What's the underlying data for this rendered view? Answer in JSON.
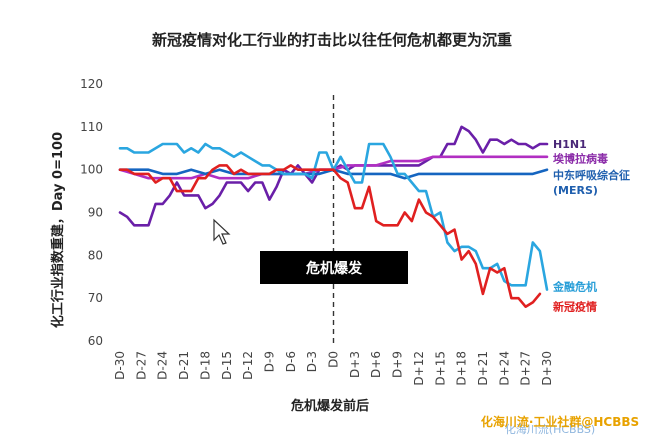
{
  "chart_data": {
    "type": "line",
    "title": "新冠疫情对化工行业的打击比以往任何危机都更为沉重",
    "xlabel": "危机爆发前后",
    "ylabel": "化工行业指数重建，Day 0=100",
    "ylim": [
      60,
      120
    ],
    "yticks": [
      60,
      70,
      80,
      90,
      100,
      110,
      120
    ],
    "xlim": [
      -30,
      30
    ],
    "xticks": [
      -30,
      -27,
      -24,
      -21,
      -18,
      -15,
      -12,
      -9,
      -6,
      -3,
      0,
      3,
      6,
      9,
      12,
      15,
      18,
      21,
      24,
      27,
      30
    ],
    "xtick_labels": [
      "D-30",
      "D-27",
      "D-24",
      "D-21",
      "D-18",
      "D-15",
      "D-12",
      "D-9",
      "D-6",
      "D-3",
      "D0",
      "D+3",
      "D+6",
      "D+9",
      "D+12",
      "D+15",
      "D+18",
      "D+21",
      "D+24",
      "D+27",
      "D+30"
    ],
    "grid": false,
    "legend_placement": "right (inline labels)",
    "annotation": {
      "label": "危机爆发",
      "x": 0
    },
    "series": [
      {
        "name": "H1N1",
        "color": "#6a1fa8",
        "points": [
          [
            -30,
            90
          ],
          [
            -29,
            89
          ],
          [
            -28,
            87
          ],
          [
            -27,
            87
          ],
          [
            -26,
            87
          ],
          [
            -25,
            92
          ],
          [
            -24,
            92
          ],
          [
            -23,
            94
          ],
          [
            -22,
            97
          ],
          [
            -21,
            94
          ],
          [
            -20,
            94
          ],
          [
            -19,
            94
          ],
          [
            -18,
            91
          ],
          [
            -17,
            92
          ],
          [
            -16,
            94
          ],
          [
            -15,
            97
          ],
          [
            -14,
            97
          ],
          [
            -13,
            97
          ],
          [
            -12,
            95
          ],
          [
            -11,
            97
          ],
          [
            -10,
            97
          ],
          [
            -9,
            93
          ],
          [
            -8,
            96
          ],
          [
            -7,
            100
          ],
          [
            -6,
            99
          ],
          [
            -5,
            101
          ],
          [
            -4,
            99
          ],
          [
            -3,
            97
          ],
          [
            -2,
            100
          ],
          [
            -1,
            100
          ],
          [
            0,
            100
          ],
          [
            1,
            101
          ],
          [
            2,
            100
          ],
          [
            3,
            101
          ],
          [
            4,
            101
          ],
          [
            5,
            101
          ],
          [
            6,
            101
          ],
          [
            7,
            101
          ],
          [
            8,
            101
          ],
          [
            9,
            101
          ],
          [
            10,
            101
          ],
          [
            11,
            101
          ],
          [
            12,
            101
          ],
          [
            13,
            102
          ],
          [
            14,
            103
          ],
          [
            15,
            103
          ],
          [
            16,
            106
          ],
          [
            17,
            106
          ],
          [
            18,
            110
          ],
          [
            19,
            109
          ],
          [
            20,
            107
          ],
          [
            21,
            104
          ],
          [
            22,
            107
          ],
          [
            23,
            107
          ],
          [
            24,
            106
          ],
          [
            25,
            107
          ],
          [
            26,
            106
          ],
          [
            27,
            106
          ],
          [
            28,
            105
          ],
          [
            29,
            106
          ],
          [
            30,
            106
          ]
        ]
      },
      {
        "name": "埃博拉病毒",
        "color": "#b12fc2",
        "points": [
          [
            -30,
            100
          ],
          [
            -28,
            99
          ],
          [
            -26,
            98
          ],
          [
            -24,
            98
          ],
          [
            -22,
            98
          ],
          [
            -20,
            98
          ],
          [
            -18,
            99
          ],
          [
            -16,
            98
          ],
          [
            -14,
            98
          ],
          [
            -12,
            98
          ],
          [
            -10,
            99
          ],
          [
            -8,
            99
          ],
          [
            -6,
            99
          ],
          [
            -4,
            99
          ],
          [
            -2,
            100
          ],
          [
            0,
            100
          ],
          [
            2,
            101
          ],
          [
            4,
            101
          ],
          [
            6,
            101
          ],
          [
            8,
            102
          ],
          [
            10,
            102
          ],
          [
            12,
            102
          ],
          [
            14,
            103
          ],
          [
            16,
            103
          ],
          [
            18,
            103
          ],
          [
            20,
            103
          ],
          [
            22,
            103
          ],
          [
            24,
            103
          ],
          [
            26,
            103
          ],
          [
            28,
            103
          ],
          [
            30,
            103
          ]
        ]
      },
      {
        "name": "中东呼吸综合征 (MERS)",
        "color": "#1565c0",
        "points": [
          [
            -30,
            100
          ],
          [
            -28,
            100
          ],
          [
            -26,
            100
          ],
          [
            -24,
            99
          ],
          [
            -22,
            99
          ],
          [
            -20,
            100
          ],
          [
            -18,
            99
          ],
          [
            -16,
            100
          ],
          [
            -14,
            99
          ],
          [
            -12,
            99
          ],
          [
            -10,
            99
          ],
          [
            -8,
            99
          ],
          [
            -6,
            99
          ],
          [
            -4,
            99
          ],
          [
            -2,
            99
          ],
          [
            0,
            100
          ],
          [
            2,
            99
          ],
          [
            4,
            99
          ],
          [
            6,
            99
          ],
          [
            8,
            99
          ],
          [
            10,
            98
          ],
          [
            12,
            99
          ],
          [
            14,
            99
          ],
          [
            16,
            99
          ],
          [
            18,
            99
          ],
          [
            20,
            99
          ],
          [
            22,
            99
          ],
          [
            24,
            99
          ],
          [
            26,
            99
          ],
          [
            28,
            99
          ],
          [
            30,
            100
          ]
        ]
      },
      {
        "name": "金融危机",
        "color": "#2aa6e0",
        "points": [
          [
            -30,
            105
          ],
          [
            -29,
            105
          ],
          [
            -28,
            104
          ],
          [
            -27,
            104
          ],
          [
            -26,
            104
          ],
          [
            -25,
            105
          ],
          [
            -24,
            106
          ],
          [
            -23,
            106
          ],
          [
            -22,
            106
          ],
          [
            -21,
            104
          ],
          [
            -20,
            105
          ],
          [
            -19,
            104
          ],
          [
            -18,
            106
          ],
          [
            -17,
            105
          ],
          [
            -16,
            105
          ],
          [
            -15,
            104
          ],
          [
            -14,
            103
          ],
          [
            -13,
            104
          ],
          [
            -12,
            103
          ],
          [
            -11,
            102
          ],
          [
            -10,
            101
          ],
          [
            -9,
            101
          ],
          [
            -8,
            100
          ],
          [
            -7,
            99
          ],
          [
            -6,
            99
          ],
          [
            -5,
            99
          ],
          [
            -4,
            99
          ],
          [
            -3,
            98
          ],
          [
            -2,
            104
          ],
          [
            -1,
            104
          ],
          [
            0,
            100
          ],
          [
            1,
            103
          ],
          [
            2,
            100
          ],
          [
            3,
            97
          ],
          [
            4,
            97
          ],
          [
            5,
            106
          ],
          [
            6,
            106
          ],
          [
            7,
            106
          ],
          [
            8,
            103
          ],
          [
            9,
            99
          ],
          [
            10,
            99
          ],
          [
            11,
            97
          ],
          [
            12,
            95
          ],
          [
            13,
            95
          ],
          [
            14,
            89
          ],
          [
            15,
            90
          ],
          [
            16,
            83
          ],
          [
            17,
            81
          ],
          [
            18,
            82
          ],
          [
            19,
            82
          ],
          [
            20,
            81
          ],
          [
            21,
            77
          ],
          [
            22,
            77
          ],
          [
            23,
            78
          ],
          [
            24,
            74
          ],
          [
            25,
            73
          ],
          [
            26,
            73
          ],
          [
            27,
            73
          ],
          [
            28,
            83
          ],
          [
            29,
            81
          ],
          [
            30,
            72
          ]
        ]
      },
      {
        "name": "新冠疫情",
        "color": "#e02020",
        "points": [
          [
            -30,
            100
          ],
          [
            -29,
            100
          ],
          [
            -28,
            99
          ],
          [
            -27,
            99
          ],
          [
            -26,
            99
          ],
          [
            -25,
            97
          ],
          [
            -24,
            98
          ],
          [
            -23,
            98
          ],
          [
            -22,
            95
          ],
          [
            -21,
            95
          ],
          [
            -20,
            95
          ],
          [
            -19,
            98
          ],
          [
            -18,
            98
          ],
          [
            -17,
            100
          ],
          [
            -16,
            101
          ],
          [
            -15,
            101
          ],
          [
            -14,
            99
          ],
          [
            -13,
            100
          ],
          [
            -12,
            99
          ],
          [
            -11,
            99
          ],
          [
            -10,
            99
          ],
          [
            -9,
            99
          ],
          [
            -8,
            100
          ],
          [
            -7,
            100
          ],
          [
            -6,
            101
          ],
          [
            -5,
            100
          ],
          [
            -4,
            100
          ],
          [
            -3,
            100
          ],
          [
            -2,
            100
          ],
          [
            -1,
            100
          ],
          [
            0,
            100
          ],
          [
            1,
            98
          ],
          [
            2,
            97
          ],
          [
            3,
            91
          ],
          [
            4,
            91
          ],
          [
            5,
            96
          ],
          [
            6,
            88
          ],
          [
            7,
            87
          ],
          [
            8,
            87
          ],
          [
            9,
            87
          ],
          [
            10,
            90
          ],
          [
            11,
            88
          ],
          [
            12,
            93
          ],
          [
            13,
            90
          ],
          [
            14,
            89
          ],
          [
            15,
            87
          ],
          [
            16,
            85
          ],
          [
            17,
            86
          ],
          [
            18,
            79
          ],
          [
            19,
            81
          ],
          [
            20,
            78
          ],
          [
            21,
            71
          ],
          [
            22,
            77
          ],
          [
            23,
            76
          ],
          [
            24,
            77
          ],
          [
            25,
            70
          ],
          [
            26,
            70
          ],
          [
            27,
            68
          ],
          [
            28,
            69
          ],
          [
            29,
            71
          ]
        ]
      }
    ],
    "legend_labels": [
      {
        "name": "H1N1",
        "lines": [
          "H1N1"
        ],
        "color": "#4a2878",
        "y": 106
      },
      {
        "name": "埃博拉病毒",
        "lines": [
          "埃博拉病毒"
        ],
        "color": "#8a2aa8",
        "y": 102.6
      },
      {
        "name": "中东呼吸综合征 (MERS)",
        "lines": [
          "中东呼吸综合征",
          "(MERS)"
        ],
        "color": "#1f5fae",
        "y": 98.8
      },
      {
        "name": "金融危机",
        "lines": [
          "金融危机"
        ],
        "color": "#2a9fd8",
        "y": 72.7
      },
      {
        "name": "新冠疫情",
        "lines": [
          "新冠疫情"
        ],
        "color": "#e02020",
        "y": 68
      }
    ]
  },
  "watermark": {
    "main": "化海川流·工业社群@HCBBS",
    "faint": "化海川流(HCBBS)"
  }
}
